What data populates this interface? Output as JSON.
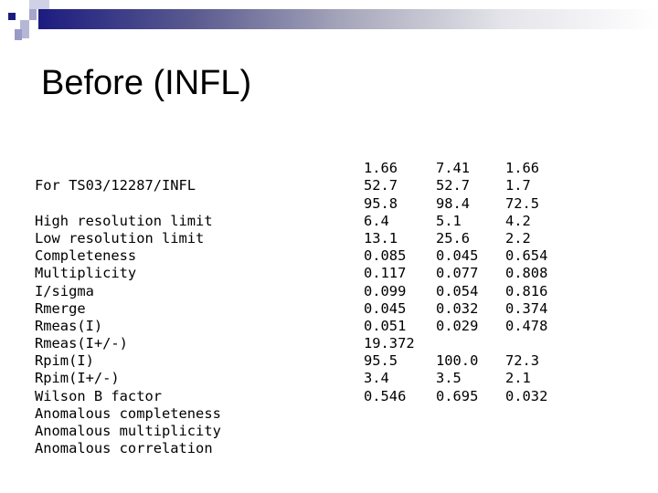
{
  "slide": {
    "title": "Before (INFL)",
    "accent_color": "#1c1c80"
  },
  "table": {
    "header": "For TS03/12287/INFL",
    "rows": [
      {
        "label": "High resolution limit",
        "values": [
          "1.66",
          "7.41",
          "1.66"
        ]
      },
      {
        "label": "Low resolution limit",
        "values": [
          "52.7",
          "52.7",
          "1.7"
        ]
      },
      {
        "label": "Completeness",
        "values": [
          "95.8",
          "98.4",
          "72.5"
        ]
      },
      {
        "label": "Multiplicity",
        "values": [
          "6.4",
          "5.1",
          "4.2"
        ]
      },
      {
        "label": "I/sigma",
        "values": [
          "13.1",
          "25.6",
          "2.2"
        ]
      },
      {
        "label": "Rmerge",
        "values": [
          "0.085",
          "0.045",
          "0.654"
        ]
      },
      {
        "label": "Rmeas(I)",
        "values": [
          "0.117",
          "0.077",
          "0.808"
        ]
      },
      {
        "label": "Rmeas(I+/-)",
        "values": [
          "0.099",
          "0.054",
          "0.816"
        ]
      },
      {
        "label": "Rpim(I)",
        "values": [
          "0.045",
          "0.032",
          "0.374"
        ]
      },
      {
        "label": "Rpim(I+/-)",
        "values": [
          "0.051",
          "0.029",
          "0.478"
        ]
      },
      {
        "label": "Wilson B factor",
        "values": [
          "19.372",
          "",
          ""
        ]
      },
      {
        "label": "Anomalous completeness",
        "values": [
          "95.5",
          "100.0",
          "72.3"
        ]
      },
      {
        "label": "Anomalous multiplicity",
        "values": [
          "3.4",
          "3.5",
          "2.1"
        ]
      },
      {
        "label": "Anomalous correlation",
        "values": [
          "0.546",
          "0.695",
          "0.032"
        ]
      }
    ]
  }
}
